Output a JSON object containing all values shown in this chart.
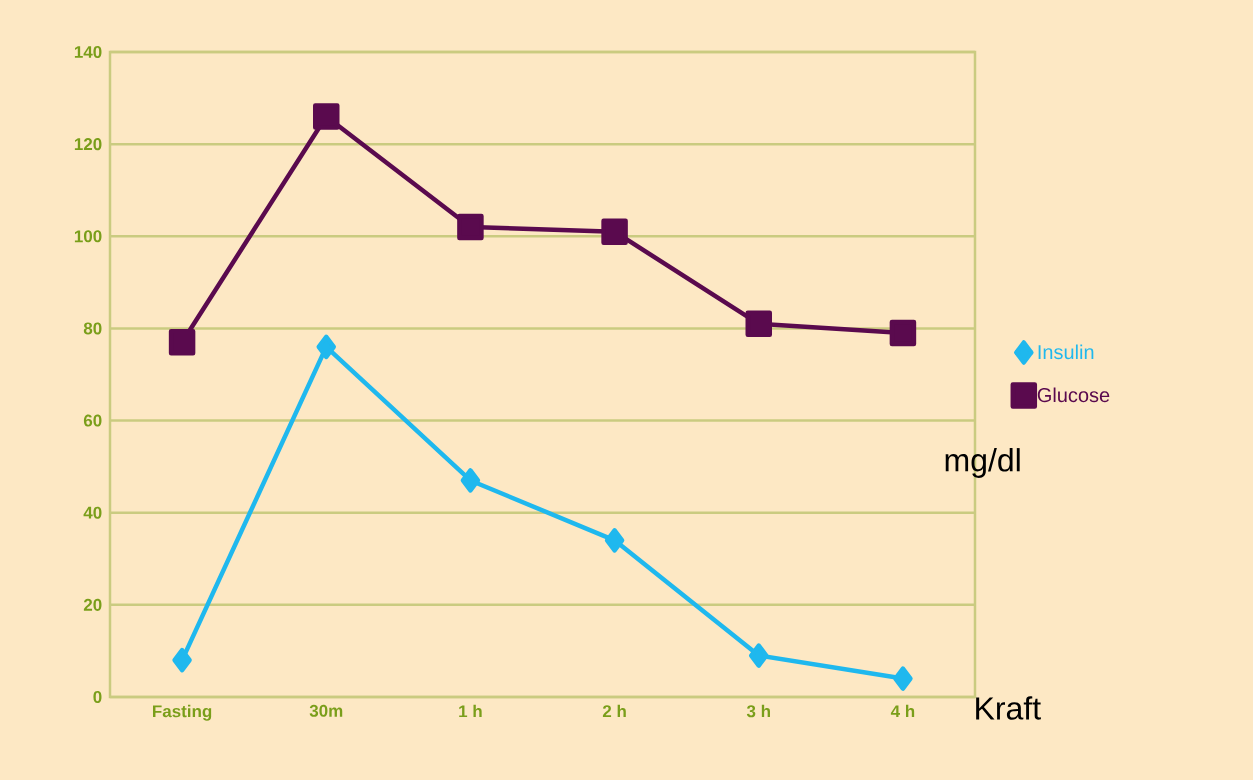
{
  "chart_data": {
    "type": "line",
    "categories": [
      "Fasting",
      "30m",
      "1 h",
      "2 h",
      "3 h",
      "4 h"
    ],
    "series": [
      {
        "name": "Insulin",
        "color": "#1fb8ee",
        "marker": "diamond",
        "values": [
          8,
          76,
          47,
          34,
          9,
          4
        ]
      },
      {
        "name": "Glucose",
        "color": "#5a0a4e",
        "marker": "square",
        "values": [
          77,
          126,
          102,
          101,
          81,
          79
        ]
      }
    ],
    "ylim": [
      0,
      140
    ],
    "yticks": [
      0,
      20,
      40,
      60,
      80,
      100,
      120,
      140
    ],
    "grid": "y",
    "legend": "right",
    "annotations": [
      "mg/dl",
      "Kraft"
    ]
  }
}
